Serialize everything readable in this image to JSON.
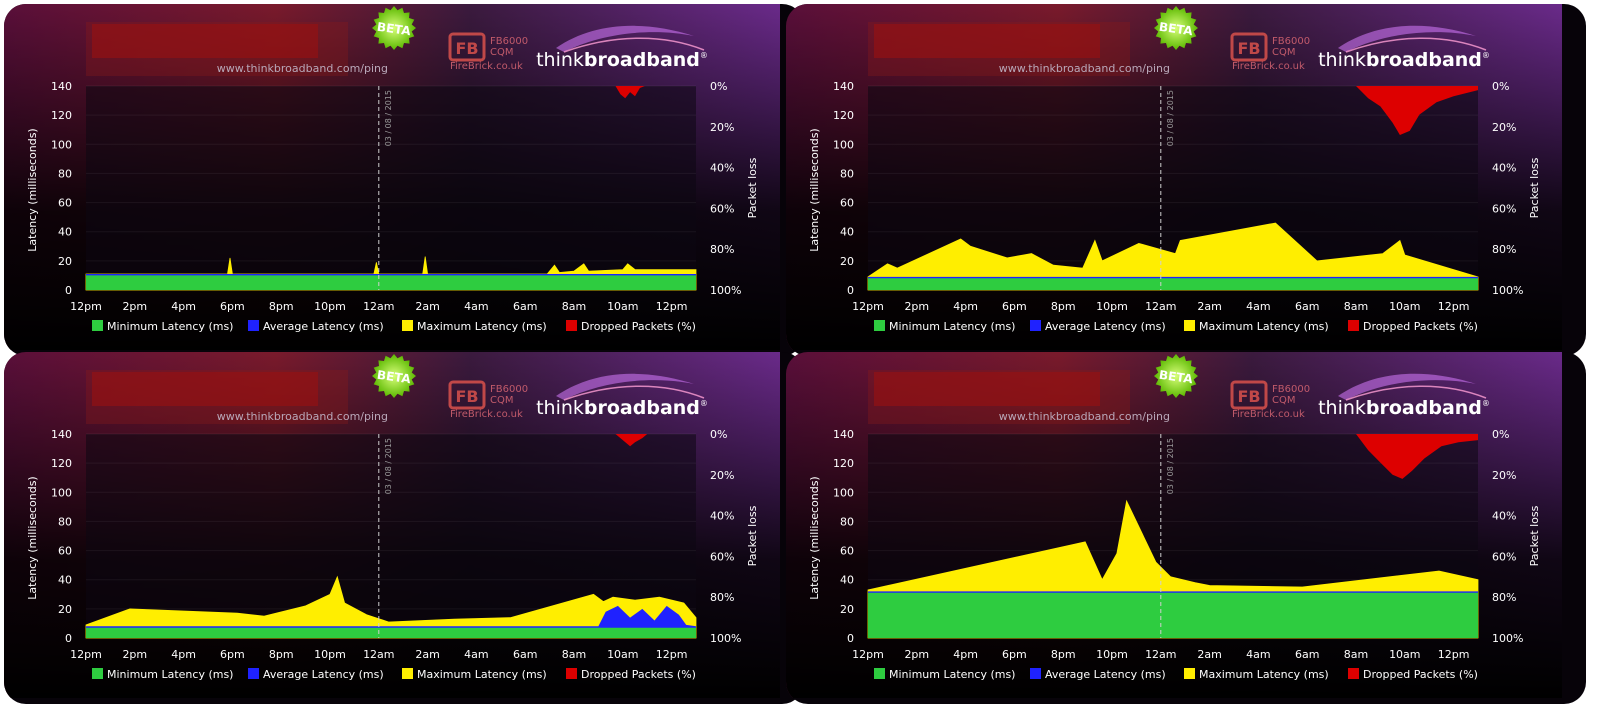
{
  "header": {
    "beta_label": "BETA",
    "url_text": "www.thinkbroadband.com/ping",
    "sponsor_code": "FB6000",
    "sponsor_sub": "CQM",
    "sponsor_site": "FireBrick.co.uk",
    "brand_think": "think",
    "brand_broadband": "broadband",
    "brand_mark": "®"
  },
  "axes": {
    "ylabel": "Latency (milliseconds)",
    "y2label": "Packet loss",
    "date_marker": "03 / 08 / 2015",
    "y_ticks": [
      0,
      20,
      40,
      60,
      80,
      100,
      120,
      140
    ],
    "ylim": [
      0,
      140
    ],
    "y2_ticks": [
      "0%",
      "20%",
      "40%",
      "60%",
      "80%",
      "100%"
    ],
    "x_ticks": [
      "12pm",
      "2pm",
      "4pm",
      "6pm",
      "8pm",
      "10pm",
      "12am",
      "2am",
      "4am",
      "6am",
      "8am",
      "10am",
      "12pm"
    ]
  },
  "legend": [
    {
      "label": "Minimum Latency (ms)",
      "color": "#2ecc40"
    },
    {
      "label": "Average Latency (ms)",
      "color": "#1f22ff"
    },
    {
      "label": "Maximum Latency (ms)",
      "color": "#ffee00"
    },
    {
      "label": "Dropped Packets (%)",
      "color": "#dd0000"
    }
  ],
  "chart_data": [
    {
      "type": "area",
      "xlabel": "",
      "ylabel": "Latency (milliseconds)",
      "y2label": "Packet loss",
      "x_range_hours": [
        0,
        25
      ],
      "ylim": [
        0,
        140
      ],
      "series": [
        {
          "name": "Minimum Latency (ms)",
          "points": [
            [
              0,
              10
            ],
            [
              25,
              10
            ]
          ]
        },
        {
          "name": "Average Latency (ms)",
          "points": [
            [
              0,
              11
            ],
            [
              25,
              11
            ]
          ]
        },
        {
          "name": "Maximum Latency (ms)",
          "points": [
            [
              0,
              11
            ],
            [
              5.8,
              11
            ],
            [
              5.9,
              22
            ],
            [
              6.0,
              11
            ],
            [
              11.8,
              11
            ],
            [
              11.9,
              19
            ],
            [
              12.0,
              11
            ],
            [
              13.8,
              11
            ],
            [
              13.9,
              23
            ],
            [
              14.0,
              11
            ],
            [
              18.9,
              11
            ],
            [
              19.2,
              17
            ],
            [
              19.4,
              12
            ],
            [
              20.0,
              13
            ],
            [
              20.4,
              18
            ],
            [
              20.6,
              13
            ],
            [
              22.0,
              14
            ],
            [
              22.2,
              18
            ],
            [
              22.5,
              14
            ],
            [
              25,
              14
            ]
          ]
        },
        {
          "name": "Dropped Packets (%)",
          "points": [
            [
              21.7,
              0
            ],
            [
              21.9,
              4
            ],
            [
              22.1,
              6
            ],
            [
              22.3,
              3
            ],
            [
              22.5,
              5
            ],
            [
              22.7,
              1
            ],
            [
              22.9,
              0
            ]
          ]
        }
      ]
    },
    {
      "type": "area",
      "xlabel": "",
      "ylabel": "Latency (milliseconds)",
      "y2label": "Packet loss",
      "x_range_hours": [
        0,
        25
      ],
      "ylim": [
        0,
        140
      ],
      "series": [
        {
          "name": "Minimum Latency (ms)",
          "points": [
            [
              0,
              8
            ],
            [
              25,
              8
            ]
          ]
        },
        {
          "name": "Average Latency (ms)",
          "points": [
            [
              0,
              9
            ],
            [
              25,
              9
            ]
          ]
        },
        {
          "name": "Maximum Latency (ms)",
          "points": [
            [
              0,
              9
            ],
            [
              0.8,
              18
            ],
            [
              1.2,
              15
            ],
            [
              3.8,
              35
            ],
            [
              4.2,
              30
            ],
            [
              5.7,
              22
            ],
            [
              6.7,
              25
            ],
            [
              7.6,
              17
            ],
            [
              8.8,
              15
            ],
            [
              9.3,
              34
            ],
            [
              9.6,
              20
            ],
            [
              11.1,
              32
            ],
            [
              12.6,
              25
            ],
            [
              12.8,
              34
            ],
            [
              16.7,
              46
            ],
            [
              18.4,
              20
            ],
            [
              21.1,
              25
            ],
            [
              21.8,
              34
            ],
            [
              22.0,
              24
            ],
            [
              25,
              9
            ]
          ]
        },
        {
          "name": "Dropped Packets (%)",
          "points": [
            [
              20.0,
              0
            ],
            [
              20.5,
              6
            ],
            [
              21.0,
              10
            ],
            [
              21.5,
              18
            ],
            [
              21.8,
              24
            ],
            [
              22.2,
              22
            ],
            [
              22.6,
              14
            ],
            [
              23.3,
              8
            ],
            [
              24.0,
              5
            ],
            [
              25,
              2
            ]
          ]
        }
      ]
    },
    {
      "type": "area",
      "xlabel": "",
      "ylabel": "Latency (milliseconds)",
      "y2label": "Packet loss",
      "x_range_hours": [
        0,
        25
      ],
      "ylim": [
        0,
        140
      ],
      "series": [
        {
          "name": "Minimum Latency (ms)",
          "points": [
            [
              0,
              7
            ],
            [
              25,
              7
            ]
          ]
        },
        {
          "name": "Average Latency (ms)",
          "points": [
            [
              0,
              8
            ],
            [
              21.0,
              8
            ],
            [
              21.3,
              18
            ],
            [
              21.8,
              22
            ],
            [
              22.3,
              14
            ],
            [
              22.8,
              20
            ],
            [
              23.3,
              12
            ],
            [
              23.8,
              22
            ],
            [
              24.3,
              16
            ],
            [
              24.6,
              9
            ],
            [
              25,
              8
            ]
          ]
        },
        {
          "name": "Maximum Latency (ms)",
          "points": [
            [
              0,
              9
            ],
            [
              1.8,
              20
            ],
            [
              6.2,
              17
            ],
            [
              7.3,
              15
            ],
            [
              9.0,
              22
            ],
            [
              10.0,
              30
            ],
            [
              10.3,
              42
            ],
            [
              10.6,
              24
            ],
            [
              11.5,
              16
            ],
            [
              12.4,
              11
            ],
            [
              15.1,
              13
            ],
            [
              17.4,
              14
            ],
            [
              20.8,
              30
            ],
            [
              21.2,
              25
            ],
            [
              21.6,
              28
            ],
            [
              22.5,
              26
            ],
            [
              23.5,
              28
            ],
            [
              24.5,
              24
            ],
            [
              25,
              14
            ]
          ]
        },
        {
          "name": "Dropped Packets (%)",
          "points": [
            [
              21.7,
              0
            ],
            [
              22.0,
              3
            ],
            [
              22.3,
              6
            ],
            [
              22.5,
              4
            ],
            [
              22.8,
              2
            ],
            [
              23.0,
              0
            ]
          ]
        }
      ]
    },
    {
      "type": "area",
      "xlabel": "",
      "ylabel": "Latency (milliseconds)",
      "y2label": "Packet loss",
      "x_range_hours": [
        0,
        25
      ],
      "ylim": [
        0,
        140
      ],
      "series": [
        {
          "name": "Minimum Latency (ms)",
          "points": [
            [
              0,
              31
            ],
            [
              25,
              31
            ]
          ]
        },
        {
          "name": "Average Latency (ms)",
          "points": [
            [
              0,
              32
            ],
            [
              25,
              32
            ]
          ]
        },
        {
          "name": "Maximum Latency (ms)",
          "points": [
            [
              0,
              33
            ],
            [
              8.9,
              66
            ],
            [
              9.6,
              40
            ],
            [
              10.2,
              58
            ],
            [
              10.6,
              94
            ],
            [
              11.8,
              52
            ],
            [
              12.4,
              42
            ],
            [
              13.4,
              38
            ],
            [
              14.0,
              36
            ],
            [
              17.8,
              35
            ],
            [
              23.4,
              46
            ],
            [
              25,
              40
            ]
          ]
        },
        {
          "name": "Dropped Packets (%)",
          "points": [
            [
              20.0,
              0
            ],
            [
              20.5,
              8
            ],
            [
              21.0,
              14
            ],
            [
              21.5,
              20
            ],
            [
              21.9,
              22
            ],
            [
              22.3,
              18
            ],
            [
              22.8,
              12
            ],
            [
              23.5,
              6
            ],
            [
              24.2,
              4
            ],
            [
              25,
              3
            ]
          ]
        }
      ]
    }
  ]
}
